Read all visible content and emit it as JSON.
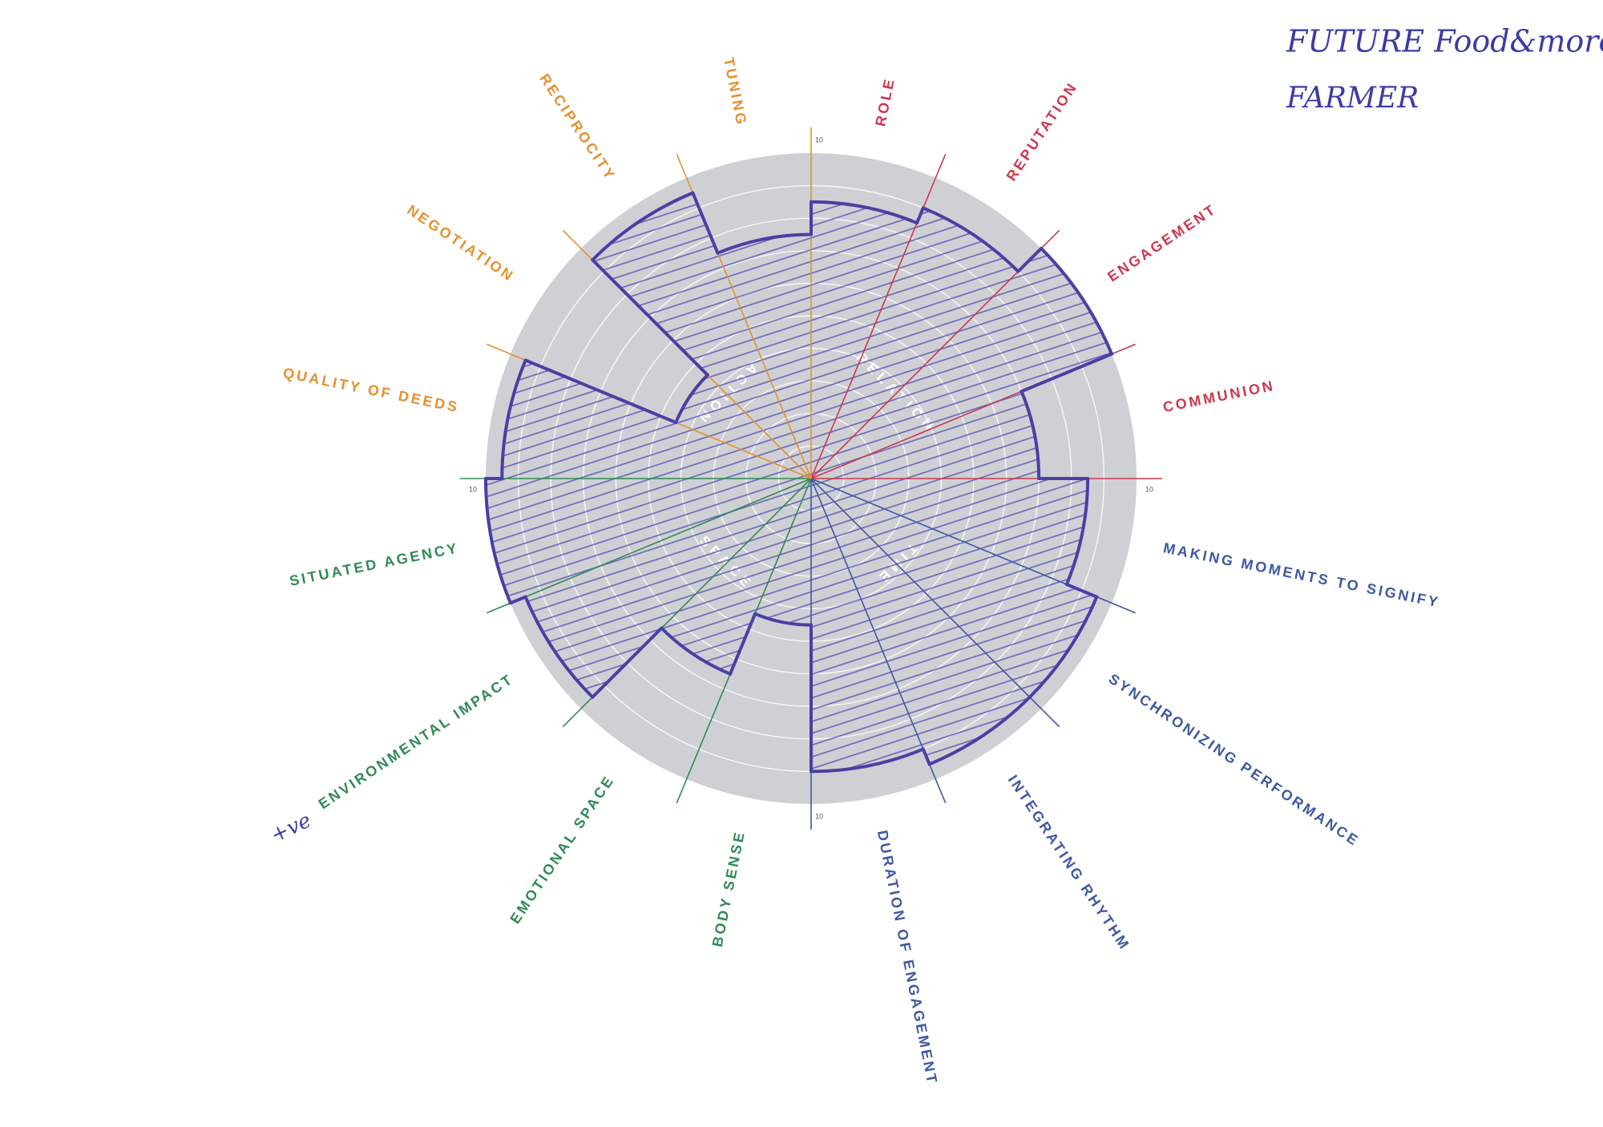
{
  "chart_data": {
    "type": "polar-area",
    "categories": [
      "ROLE",
      "REPUTATION",
      "ENGAGEMENT",
      "COMMUNION",
      "MAKING MOMENTS TO SIGNIFY",
      "SYNCHRONIZING PERFORMANCE",
      "INTEGRATING RHYTHM",
      "DURATION OF ENGAGEMENT",
      "BODY SENSE",
      "EMOTIONAL SPACE",
      "ENVIRONMENTAL IMPACT",
      "SITUATED AGENCY",
      "QUALITY OF DEEDS",
      "NEGOTIATION",
      "RECIPROCITY",
      "TUNING"
    ],
    "values": [
      8.5,
      9,
      10,
      7,
      8.5,
      9.5,
      9.5,
      9,
      4.5,
      6.5,
      9.5,
      10,
      9.5,
      4.5,
      9.5,
      7.5
    ],
    "category_colors": [
      "#cc3850",
      "#cc3850",
      "#cc3850",
      "#cc3850",
      "#3d58a4",
      "#3d58a4",
      "#3d58a4",
      "#3d58a4",
      "#2f8a55",
      "#2f8a55",
      "#2f8a55",
      "#2f8a55",
      "#e4902e",
      "#e4902e",
      "#e4902e",
      "#e4902e"
    ],
    "color": "#4a3fa4",
    "group_labels": [
      "RELATION",
      "TIME",
      "SPACE",
      "ACTION"
    ],
    "rlim": [
      0,
      10
    ],
    "rticks": [
      10
    ],
    "annotations": [
      "FUTURE Food&more",
      "FARMER",
      "+ve"
    ]
  }
}
